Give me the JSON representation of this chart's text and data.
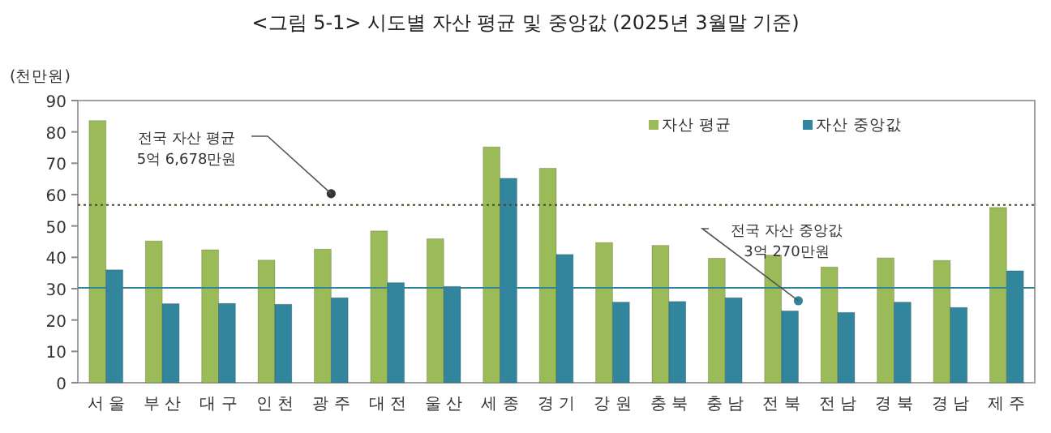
{
  "chart_data": {
    "type": "bar",
    "title": "<그림 5-1> 시도별 자산 평균 및 중앙값 (2025년 3월말 기준)",
    "ylabel": "(천만원)",
    "categories": [
      "서 울",
      "부 산",
      "대 구",
      "인 천",
      "광 주",
      "대 전",
      "울 산",
      "세 종",
      "경 기",
      "강 원",
      "충 북",
      "충 남",
      "전 북",
      "전 남",
      "경 북",
      "경 남",
      "제 주"
    ],
    "series": [
      {
        "name": "자산 평균",
        "color": "#9bbb59",
        "values": [
          83.6,
          45.2,
          42.4,
          39.1,
          42.6,
          48.4,
          45.9,
          75.2,
          68.4,
          44.7,
          43.8,
          39.7,
          40.7,
          36.9,
          39.8,
          39.0,
          55.9
        ]
      },
      {
        "name": "자산 중앙값",
        "color": "#31859c",
        "values": [
          36.0,
          25.2,
          25.3,
          25.0,
          27.1,
          31.9,
          30.7,
          65.2,
          40.9,
          25.7,
          25.9,
          27.1,
          22.9,
          22.4,
          25.7,
          24.0,
          35.7
        ]
      }
    ],
    "ylim": [
      0,
      90
    ],
    "yticks": [
      0,
      10,
      20,
      30,
      40,
      50,
      60,
      70,
      80,
      90
    ],
    "ref_lines": [
      {
        "axis": "y",
        "value": 56.678,
        "label": "전국 자산 평균\n5억 6,678만원",
        "color": "#4a4a2a",
        "line_style": "dotted"
      },
      {
        "axis": "y",
        "value": 30.27,
        "label": "전국 자산 중앙값\n3억 270만원",
        "color": "#31859c",
        "line_style": "solid"
      }
    ],
    "legend": "top right",
    "grid": false
  }
}
